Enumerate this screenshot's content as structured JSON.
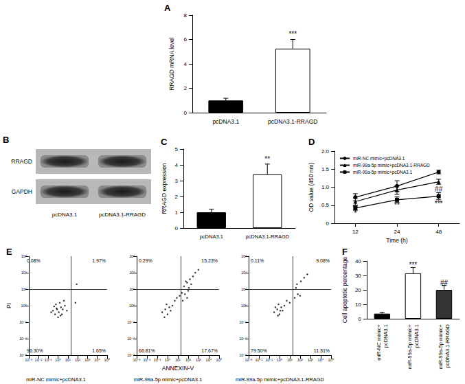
{
  "blot": {
    "title": "B",
    "bands": [
      "RRAGD",
      "GAPDH"
    ],
    "lanes": [
      "pcDNA3.1",
      "pcDNA3.1-RRAGD"
    ]
  },
  "chart_data": [
    {
      "title": "A",
      "type": "bar",
      "categories": [
        "pcDNA3.1",
        "pcDNA3.1-RRAGD"
      ],
      "values": [
        1.0,
        5.25
      ],
      "errors": [
        0.18,
        0.75
      ],
      "colors": [
        "#000000",
        "#ffffff"
      ],
      "ylabel": "RRAGD mRNA level",
      "ylim": [
        0,
        8
      ],
      "yticks": [
        0,
        2,
        4,
        6,
        8
      ],
      "grid": false,
      "annotations": [
        {
          "text": "***",
          "x": "pcDNA3.1-RRAGD",
          "y": 6.45
        }
      ]
    },
    {
      "title": "C",
      "type": "bar",
      "categories": [
        "pcDNA3.1",
        "pcDNA3.1-RRAGD"
      ],
      "values": [
        1.0,
        3.4
      ],
      "errors": [
        0.2,
        0.65
      ],
      "colors": [
        "#000000",
        "#ffffff"
      ],
      "ylabel": "RRAGD expression",
      "ylim": [
        0,
        5
      ],
      "yticks": [
        0,
        1,
        2,
        3,
        4,
        5
      ],
      "grid": false,
      "annotations": [
        {
          "text": "**",
          "x": "pcDNA3.1-RRAGD",
          "y": 4.35
        }
      ]
    },
    {
      "title": "D",
      "type": "line",
      "categories": [
        "12",
        "24",
        "48"
      ],
      "xlabel": "Time (h)",
      "ylabel": "OD value (450 nm)",
      "ylim": [
        0,
        2
      ],
      "yticks": [
        0,
        0.5,
        {
          "value": 1,
          "label": "1.0"
        },
        1.5,
        {
          "value": 2,
          "label": "2.0"
        }
      ],
      "grid": false,
      "legend": "top-left",
      "series": [
        {
          "name": "miR-NC mimic+pcDNA3.1",
          "color": "#000000",
          "marker": "circle",
          "values": [
            0.72,
            1.03,
            1.42
          ],
          "errors": [
            0.1,
            0.15,
            0.05
          ]
        },
        {
          "name": "miR-99a-5p mimic+pcDNA3.1-RRAGD",
          "color": "#000000",
          "marker": "triangle",
          "values": [
            0.6,
            0.92,
            1.15
          ],
          "errors": [
            0.1,
            0.12,
            0.07
          ]
        },
        {
          "name": "miR-99a-5p mimic+pcDNA3.1",
          "color": "#000000",
          "marker": "square",
          "values": [
            0.42,
            0.65,
            0.75
          ],
          "errors": [
            0.06,
            0.08,
            0.1
          ]
        }
      ],
      "annotations": [
        {
          "text": "*",
          "x": "12",
          "y": 0.28
        },
        {
          "text": "**",
          "x": "24",
          "y": 0.5
        },
        {
          "text": "***",
          "x": "48",
          "y": 0.55
        },
        {
          "text": "##",
          "x": "48",
          "y": 0.95
        }
      ]
    },
    {
      "title": "E",
      "type": "scatter",
      "subtitle": "miR-NC mimic+pcDNA3.1",
      "ylabel": "PI",
      "color": "#000000",
      "log": true,
      "grid": false,
      "xlim": [
        0.001,
        100000
      ],
      "xticks": [
        {
          "value": 0.001,
          "label": "10⁻³"
        },
        {
          "value": 0.01,
          "label": "10⁻²"
        },
        {
          "value": 0.1,
          "label": "10⁻¹"
        },
        {
          "value": 1,
          "label": "10⁰"
        },
        {
          "value": 10,
          "label": "10¹"
        },
        {
          "value": 100,
          "label": "10²"
        },
        {
          "value": 1000,
          "label": "10³"
        },
        {
          "value": 10000,
          "label": "10⁴"
        },
        {
          "value": 100000,
          "label": "10⁵"
        }
      ],
      "ylim": [
        0.001,
        1000
      ],
      "yticks": [
        {
          "value": 0.001,
          "label": "10⁻³"
        },
        {
          "value": 0.01,
          "label": "10⁻²"
        },
        {
          "value": 0.1,
          "label": "10⁻¹"
        },
        {
          "value": 1,
          "label": "10⁰"
        },
        {
          "value": 10,
          "label": "10¹"
        },
        {
          "value": 100,
          "label": "10²"
        },
        {
          "value": 1000,
          "label": "10³"
        }
      ],
      "gates": [
        20,
        10
      ],
      "quadrant_values": [
        0.08,
        1.97,
        96.3,
        1.65
      ],
      "quadrant_labels": [
        "0.08%",
        "1.97%",
        "96.30%",
        "1.65%"
      ],
      "points": [
        [
          0.3,
          0.5
        ],
        [
          0.5,
          0.3
        ],
        [
          0.8,
          0.6
        ],
        [
          1.2,
          0.4
        ],
        [
          2,
          0.8
        ],
        [
          0.6,
          1.2
        ],
        [
          1.5,
          1.5
        ],
        [
          3,
          0.6
        ],
        [
          0.4,
          0.9
        ],
        [
          1,
          0.2
        ],
        [
          2.5,
          0.3
        ],
        [
          5,
          1
        ],
        [
          0.7,
          0.7
        ],
        [
          1.8,
          0.25
        ],
        [
          0.2,
          0.4
        ],
        [
          4,
          2
        ],
        [
          60,
          1.5
        ],
        [
          80,
          20
        ],
        [
          8,
          0.5
        ]
      ]
    },
    {
      "type": "scatter",
      "subtitle": "miR-99a-5p mimic+pcDNA3.1",
      "xlabel": "ANNEXIN-V",
      "color": "#000000",
      "log": true,
      "grid": false,
      "xlim": [
        0.001,
        100000
      ],
      "xticks": [
        {
          "value": 0.001,
          "label": "10⁻³"
        },
        {
          "value": 0.01,
          "label": "10⁻²"
        },
        {
          "value": 0.1,
          "label": "10⁻¹"
        },
        {
          "value": 1,
          "label": "10⁰"
        },
        {
          "value": 10,
          "label": "10¹"
        },
        {
          "value": 100,
          "label": "10²"
        },
        {
          "value": 1000,
          "label": "10³"
        },
        {
          "value": 10000,
          "label": "10⁴"
        },
        {
          "value": 100000,
          "label": "10⁵"
        }
      ],
      "ylim": [
        0.001,
        1000
      ],
      "yticks": [
        {
          "value": 0.001,
          "label": "10⁻³"
        },
        {
          "value": 0.01,
          "label": "10⁻²"
        },
        {
          "value": 0.1,
          "label": "10⁻¹"
        },
        {
          "value": 1,
          "label": "10⁰"
        },
        {
          "value": 10,
          "label": "10¹"
        },
        {
          "value": 100,
          "label": "10²"
        },
        {
          "value": 1000,
          "label": "10³"
        }
      ],
      "gates": [
        20,
        10
      ],
      "quadrant_values": [
        0.29,
        15.23,
        66.81,
        17.67
      ],
      "quadrant_labels": [
        "0.29%",
        "15.23%",
        "66.81%",
        "17.67%"
      ],
      "points": [
        [
          0.3,
          0.4
        ],
        [
          0.6,
          0.6
        ],
        [
          1,
          0.3
        ],
        [
          1.5,
          0.8
        ],
        [
          2,
          0.5
        ],
        [
          0.8,
          1.2
        ],
        [
          3,
          1
        ],
        [
          5,
          2
        ],
        [
          8,
          3
        ],
        [
          15,
          4
        ],
        [
          30,
          2
        ],
        [
          50,
          5
        ],
        [
          80,
          3
        ],
        [
          100,
          8
        ],
        [
          40,
          15
        ],
        [
          80,
          25
        ],
        [
          150,
          40
        ],
        [
          300,
          60
        ],
        [
          500,
          100
        ],
        [
          200,
          20
        ],
        [
          1000,
          150
        ],
        [
          60,
          30
        ],
        [
          120,
          12
        ],
        [
          0.5,
          0.2
        ],
        [
          25,
          6
        ]
      ]
    },
    {
      "type": "scatter",
      "subtitle": "miR-99a-5p mimic+pcDNA3.1-RRAGD",
      "color": "#000000",
      "log": true,
      "grid": false,
      "xlim": [
        0.001,
        100000
      ],
      "xticks": [
        {
          "value": 0.001,
          "label": "10⁻³"
        },
        {
          "value": 0.01,
          "label": "10⁻²"
        },
        {
          "value": 0.1,
          "label": "10⁻¹"
        },
        {
          "value": 1,
          "label": "10⁰"
        },
        {
          "value": 10,
          "label": "10¹"
        },
        {
          "value": 100,
          "label": "10²"
        },
        {
          "value": 1000,
          "label": "10³"
        },
        {
          "value": 10000,
          "label": "10⁴"
        },
        {
          "value": 100000,
          "label": "10⁵"
        }
      ],
      "ylim": [
        0.001,
        1000
      ],
      "yticks": [
        {
          "value": 0.001,
          "label": "10⁻³"
        },
        {
          "value": 0.01,
          "label": "10⁻²"
        },
        {
          "value": 0.1,
          "label": "10⁻¹"
        },
        {
          "value": 1,
          "label": "10⁰"
        },
        {
          "value": 10,
          "label": "10¹"
        },
        {
          "value": 100,
          "label": "10²"
        },
        {
          "value": 1000,
          "label": "10³"
        }
      ],
      "gates": [
        20,
        10
      ],
      "quadrant_values": [
        0.11,
        9.08,
        79.5,
        11.31
      ],
      "quadrant_labels": [
        "0.11%",
        "9.08%",
        "79.50%",
        "11.31%"
      ],
      "points": [
        [
          0.3,
          0.4
        ],
        [
          0.6,
          0.6
        ],
        [
          1,
          0.3
        ],
        [
          1.5,
          0.8
        ],
        [
          2,
          0.5
        ],
        [
          0.8,
          1.2
        ],
        [
          3,
          1
        ],
        [
          5,
          2
        ],
        [
          0.4,
          0.8
        ],
        [
          1.2,
          0.5
        ],
        [
          30,
          3
        ],
        [
          60,
          5
        ],
        [
          100,
          4
        ],
        [
          50,
          20
        ],
        [
          120,
          30
        ],
        [
          250,
          50
        ],
        [
          500,
          80
        ],
        [
          40,
          12
        ],
        [
          10,
          1.5
        ],
        [
          0.7,
          0.25
        ]
      ]
    },
    {
      "title": "F",
      "type": "bar",
      "categories": [
        "miR-NC mimic+\npcDNA3.1",
        "miR-99a-5p mimic+\npcDNA3.1",
        "miR-99a-5p mimic+\npcDNA3.1-RRAGD"
      ],
      "values": [
        3.5,
        31.5,
        20
      ],
      "errors": [
        0.9,
        4,
        3
      ],
      "colors": [
        "#000000",
        "#ffffff",
        "#333333"
      ],
      "ylabel": "Cell apoptotic percentage",
      "ylim": [
        0,
        40
      ],
      "yticks": [
        0,
        10,
        20,
        30,
        40
      ],
      "grid": false,
      "annotations": [
        {
          "text": "***",
          "x": "miR-99a-5p mimic+\npcDNA3.1",
          "y": 37.5
        },
        {
          "text": "##",
          "x": "miR-99a-5p mimic+\npcDNA3.1-RRAGD",
          "y": 25
        }
      ]
    }
  ]
}
